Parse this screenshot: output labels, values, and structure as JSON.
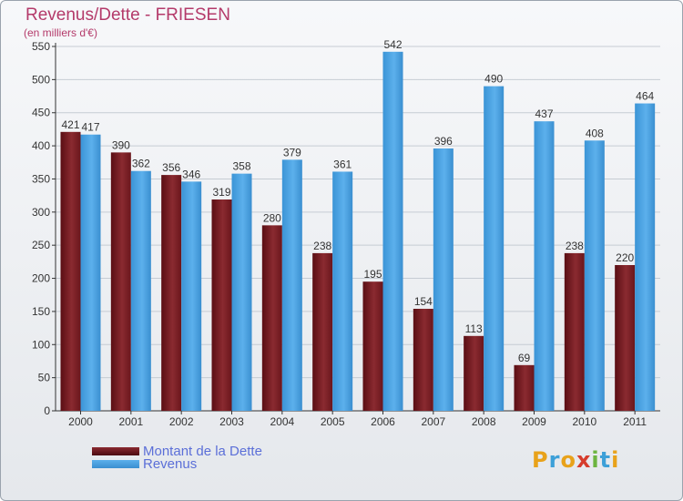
{
  "title": "Revenus/Dette - FRIESEN",
  "subtitle": "(en milliers d'€)",
  "colors": {
    "dette": "#7a1c22",
    "revenus": "#4ba3e3",
    "title": "#b43a6a",
    "legend_text": "#5b6fd8"
  },
  "legend": {
    "dette_label": "Montant de la Dette",
    "revenus_label": "Revenus"
  },
  "logo": {
    "text": "Proxiti",
    "letters": [
      "P",
      "r",
      "o",
      "x",
      "i",
      "t",
      "i"
    ],
    "letter_colors": [
      "#e8a21a",
      "#3da0d8",
      "#e8a21a",
      "#d63c2c",
      "#6cb43f",
      "#3da0d8",
      "#e8a21a"
    ]
  },
  "chart_data": {
    "type": "bar",
    "title": "Revenus/Dette - FRIESEN",
    "subtitle": "(en milliers d'€)",
    "categories": [
      "2000",
      "2001",
      "2002",
      "2003",
      "2004",
      "2005",
      "2006",
      "2007",
      "2008",
      "2009",
      "2010",
      "2011"
    ],
    "series": [
      {
        "name": "Montant de la Dette",
        "values": [
          421,
          390,
          356,
          319,
          280,
          238,
          195,
          154,
          113,
          69,
          238,
          220
        ]
      },
      {
        "name": "Revenus",
        "values": [
          417,
          362,
          346,
          358,
          379,
          361,
          542,
          396,
          490,
          437,
          408,
          464
        ]
      }
    ],
    "ylim": [
      0,
      550
    ],
    "yticks": [
      0,
      50,
      100,
      150,
      200,
      250,
      300,
      350,
      400,
      450,
      500,
      550
    ],
    "grid": true,
    "legend_position": "bottom-left"
  }
}
